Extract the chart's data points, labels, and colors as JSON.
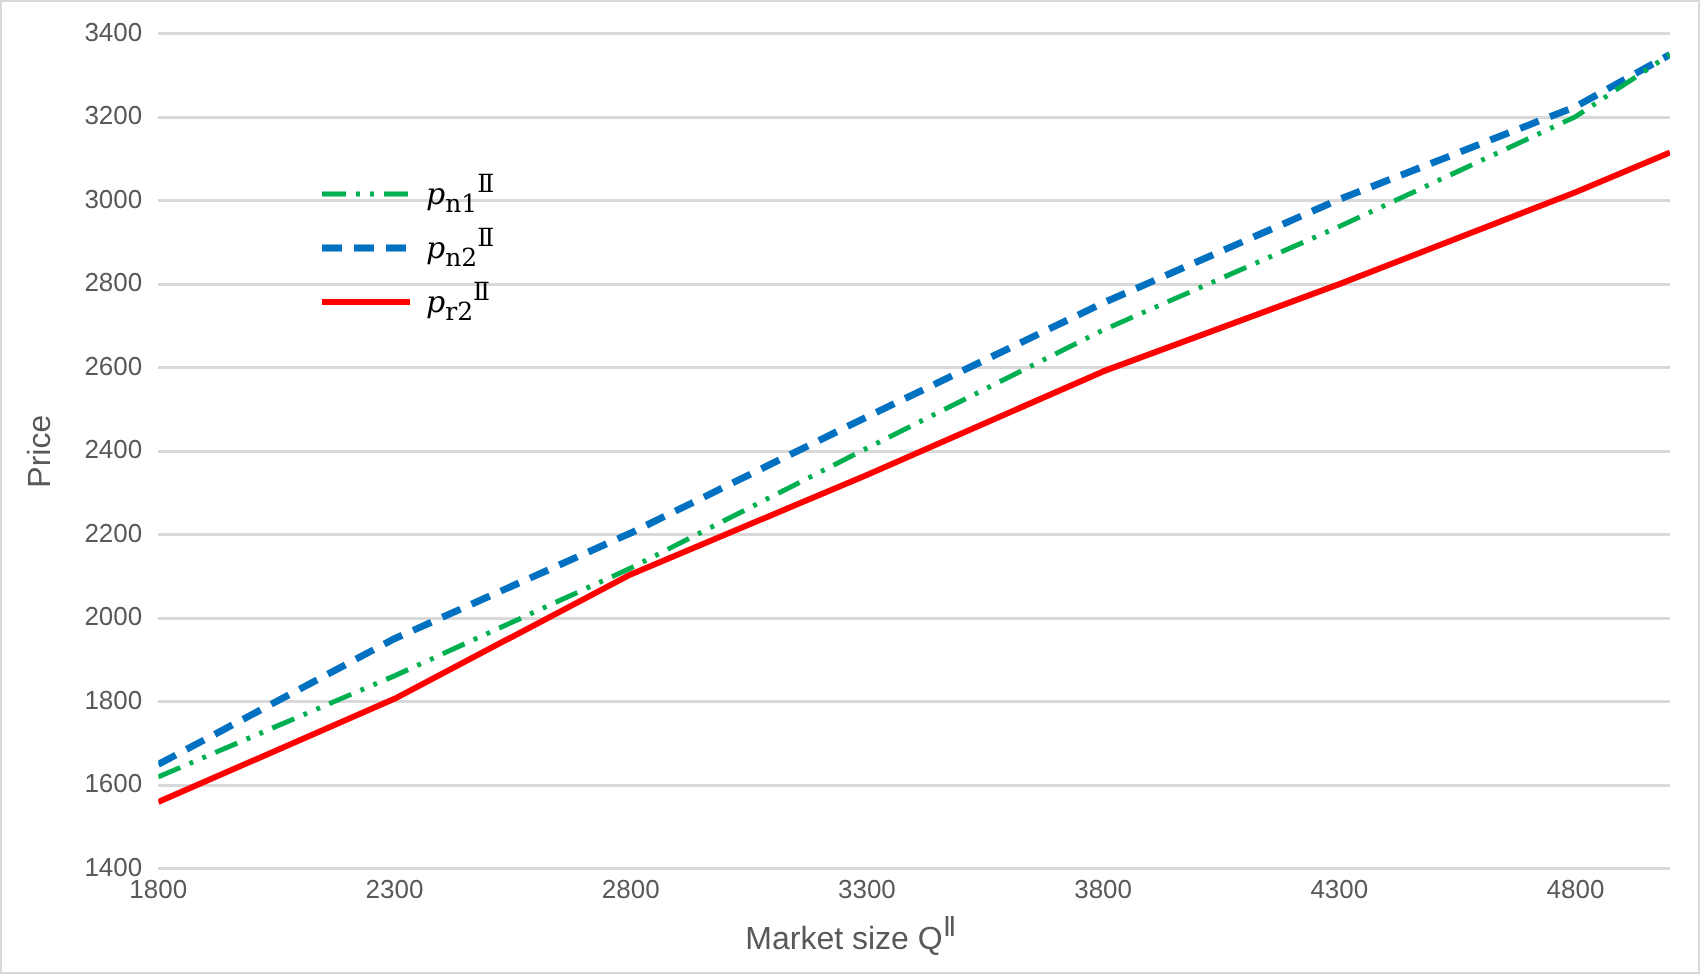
{
  "chart_data": {
    "type": "line",
    "xlabel": "Market size  Q$^{Ⅱ}$",
    "ylabel": "Price",
    "x": [
      1800,
      2300,
      2800,
      3300,
      3800,
      4300,
      4800,
      5000
    ],
    "series": [
      {
        "name": "p$_{n1}$$^{Ⅱ}$",
        "color": "#00b050",
        "line_style": "dashdot",
        "values": [
          1620,
          1862,
          2120,
          2407,
          2690,
          2938,
          3201,
          3350
        ]
      },
      {
        "name": "p$_{n2}$$^{Ⅱ}$",
        "color": "#0070c0",
        "line_style": "dashed",
        "values": [
          1650,
          1951,
          2204,
          2482,
          2755,
          3003,
          3225,
          3350
        ]
      },
      {
        "name": "p$_{r2}$$^{Ⅱ}$",
        "color": "#ff0000",
        "line_style": "solid",
        "values": [
          1560,
          1807,
          2105,
          2343,
          2591,
          2800,
          3020,
          3115
        ]
      }
    ],
    "xlim": [
      1800,
      5000
    ],
    "xticks": [
      1800,
      2300,
      2800,
      3300,
      3800,
      4300,
      4800
    ],
    "ylim": [
      1400,
      3400
    ],
    "yticks": [
      1400,
      1600,
      1800,
      2000,
      2200,
      2400,
      2600,
      2800,
      3000,
      3200,
      3400
    ],
    "grid": "y",
    "legend": "top left",
    "marker": "none"
  }
}
